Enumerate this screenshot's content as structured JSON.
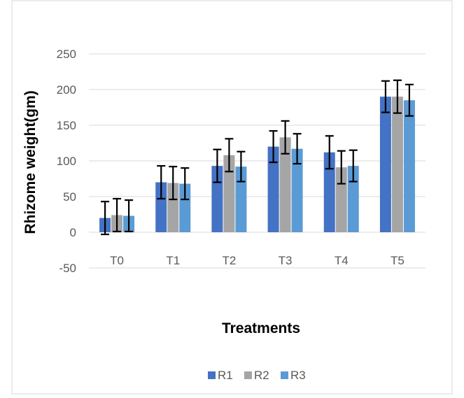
{
  "chart_data": {
    "type": "bar",
    "title": "",
    "xlabel": "Treatments",
    "ylabel": "Rhizome weight(gm)",
    "categories": [
      "T0",
      "T1",
      "T2",
      "T3",
      "T4",
      "T5"
    ],
    "ylim": [
      -50,
      250
    ],
    "yticks": [
      -50,
      0,
      50,
      100,
      150,
      200,
      250
    ],
    "grid": true,
    "legend_position": "bottom",
    "series": [
      {
        "name": "R1",
        "color": "#4472C4",
        "values": [
          20,
          70,
          93,
          120,
          112,
          190
        ],
        "errors": [
          23,
          23,
          23,
          22,
          23,
          22
        ]
      },
      {
        "name": "R2",
        "color": "#A5A5A5",
        "values": [
          24,
          69,
          108,
          133,
          91,
          190
        ],
        "errors": [
          23,
          23,
          23,
          23,
          23,
          23
        ]
      },
      {
        "name": "R3",
        "color": "#5B9BD5",
        "values": [
          23,
          68,
          92,
          117,
          93,
          185
        ],
        "errors": [
          22,
          22,
          21,
          21,
          22,
          22
        ]
      }
    ]
  }
}
